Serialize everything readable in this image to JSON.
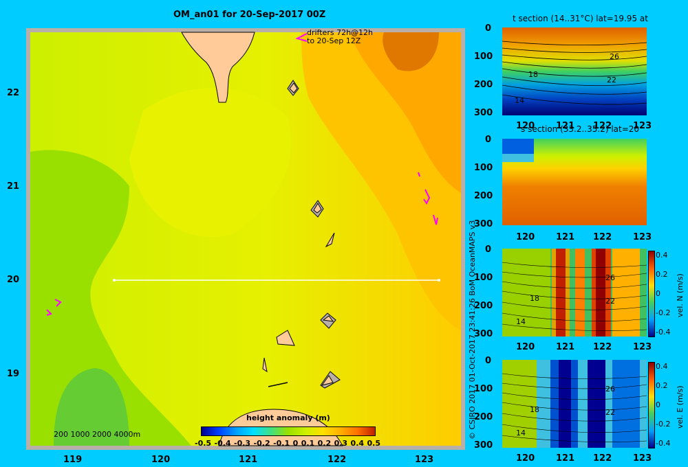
{
  "main_map": {
    "title": "OM_an01 for 20-Sep-2017 00Z",
    "x_ticks": [
      "119",
      "120",
      "121",
      "122",
      "123"
    ],
    "y_ticks": [
      "22",
      "21",
      "20",
      "19"
    ],
    "drifters_line1": "drifters 72h@12h",
    "drifters_line2": "to 20-Sep 12Z",
    "depth_scale": "200  1000  2000  4000m",
    "colorbar": {
      "title": "height anomaly  (m)",
      "ticks": [
        "-0.5",
        "-0.4",
        "-0.3",
        "-0.2",
        "-0.1",
        "0",
        "0.1",
        "0.2",
        "0.3",
        "0.4",
        "0.5"
      ],
      "range": [
        -0.5,
        0.5
      ]
    },
    "section_line": {
      "lon_start": 119.5,
      "lon_end": 123.2,
      "lat": 20.0
    }
  },
  "credit": "© CSIRO 2017   01-Oct-2017 23:41:26 BoM OceanMAPS v3",
  "panels": [
    {
      "title": "t section (14..31°C) lat=19.95 at",
      "x_ticks": [
        "120",
        "121",
        "122",
        "123"
      ],
      "y_ticks": [
        "0",
        "100",
        "200",
        "300"
      ],
      "contour_labels": [
        "26",
        "18",
        "22",
        "14"
      ]
    },
    {
      "title": "s section (33.2..35.2) lat=20",
      "x_ticks": [
        "120",
        "121",
        "122",
        "123"
      ],
      "y_ticks": [
        "0",
        "100",
        "200",
        "300"
      ],
      "contour_labels": []
    },
    {
      "title": "",
      "x_ticks": [
        "120",
        "121",
        "122",
        "123"
      ],
      "y_ticks": [
        "0",
        "100",
        "200",
        "300"
      ],
      "contour_labels": [
        "26",
        "18",
        "22",
        "14"
      ],
      "colorbar_label": "vel. N  (m/s)",
      "colorbar_ticks": [
        "0.4",
        "0.2",
        "0",
        "-0.2",
        "-0.4"
      ]
    },
    {
      "title": "",
      "x_ticks": [
        "120",
        "121",
        "122",
        "123"
      ],
      "y_ticks": [
        "0",
        "100",
        "200",
        "300"
      ],
      "contour_labels": [
        "26",
        "18",
        "22",
        "14"
      ],
      "colorbar_label": "vel. E  (m/s)",
      "colorbar_ticks": [
        "0.4",
        "0.2",
        "0",
        "-0.2",
        "-0.4"
      ]
    }
  ],
  "colors": {
    "background": "#00ccff",
    "land": "#ffcc99",
    "shelf": "#b0a898",
    "drifter": "#ff00ff"
  }
}
